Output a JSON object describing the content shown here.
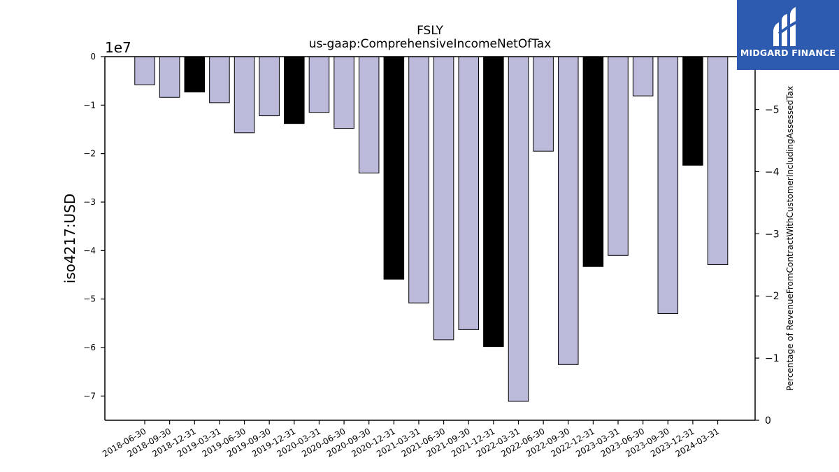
{
  "chart_data": {
    "type": "bar",
    "title": "FSLY",
    "subtitle": "us-gaap:ComprehensiveIncomeNetOfTax",
    "ylabel": "iso4217:USD",
    "y_scale_label": "1e7",
    "y2label": "Percentage of RevenueFromContractWithCustomerIncludingAssessedTax",
    "ylim": [
      -7.5,
      0
    ],
    "y2lim": [
      0,
      -5.85
    ],
    "yticks": [
      0,
      -1,
      -2,
      -3,
      -4,
      -5,
      -6,
      -7
    ],
    "ytick_labels": [
      "0",
      "−1",
      "−2",
      "−3",
      "−4",
      "−5",
      "−6",
      "−7"
    ],
    "y2ticks": [
      0,
      -1,
      -2,
      -3,
      -4,
      -5
    ],
    "y2tick_labels": [
      "0",
      "−1",
      "−2",
      "−3",
      "−4",
      "−5"
    ],
    "categories": [
      "2018-06-30",
      "2018-09-30",
      "2018-12-31",
      "2019-03-31",
      "2019-06-30",
      "2019-09-30",
      "2019-12-31",
      "2020-03-31",
      "2020-06-30",
      "2020-09-30",
      "2020-12-31",
      "2021-03-31",
      "2021-06-30",
      "2021-09-30",
      "2021-12-31",
      "2022-03-31",
      "2022-06-30",
      "2022-09-30",
      "2022-12-31",
      "2023-03-31",
      "2023-06-30",
      "2023-09-30",
      "2023-12-31",
      "2024-03-31"
    ],
    "values": [
      -0.58,
      -0.84,
      -0.73,
      -0.95,
      -1.57,
      -1.22,
      -1.38,
      -1.15,
      -1.48,
      -2.4,
      -4.59,
      -5.08,
      -5.84,
      -5.63,
      -5.98,
      -7.11,
      -1.95,
      -6.35,
      -4.33,
      -4.1,
      -0.81,
      -5.3,
      -2.24,
      -4.29
    ],
    "bar_colors": [
      "#bcbadb",
      "#bcbadb",
      "#000000",
      "#bcbadb",
      "#bcbadb",
      "#bcbadb",
      "#000000",
      "#bcbadb",
      "#bcbadb",
      "#bcbadb",
      "#000000",
      "#bcbadb",
      "#bcbadb",
      "#bcbadb",
      "#000000",
      "#bcbadb",
      "#bcbadb",
      "#bcbadb",
      "#000000",
      "#bcbadb",
      "#bcbadb",
      "#bcbadb",
      "#000000",
      "#bcbadb"
    ],
    "grid": false,
    "colors": {
      "quarter_bar": "#bcbadb",
      "annual_bar": "#000000",
      "bar_edge": "#000000"
    }
  },
  "logo": {
    "text": "MIDGARD FINANCE",
    "background": "#2d5bb0",
    "text_color": "#ffffff"
  }
}
